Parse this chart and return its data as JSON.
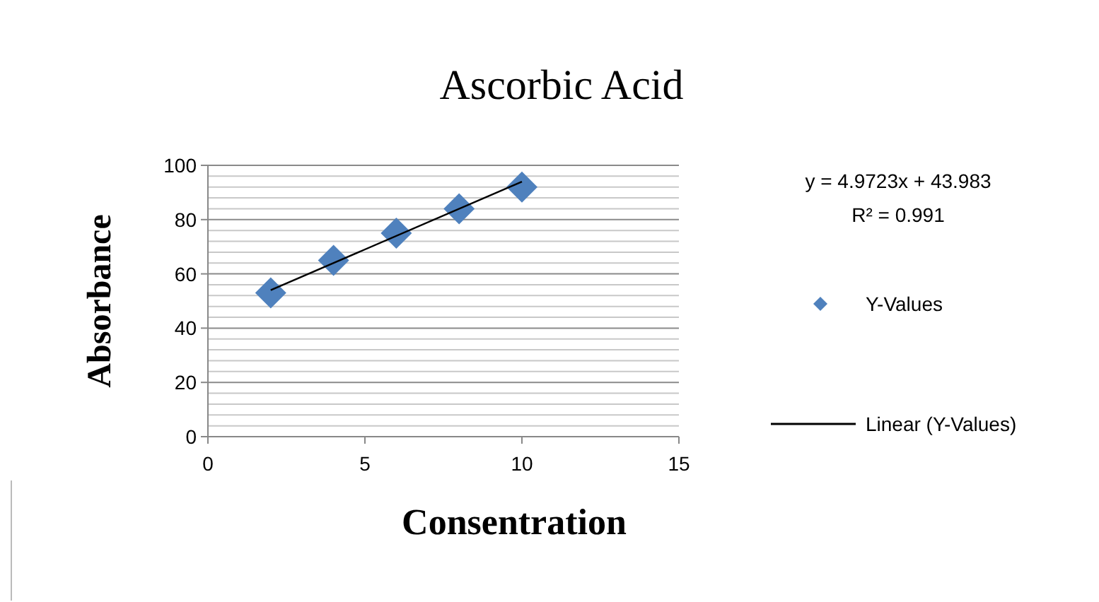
{
  "chart_data": {
    "type": "scatter",
    "title": "Ascorbic Acid",
    "xlabel": "Consentration",
    "ylabel": "Absorbance",
    "xlim": [
      0,
      15
    ],
    "xticks": [
      0,
      5,
      10,
      15
    ],
    "ylim": [
      0,
      100
    ],
    "yticks": [
      0,
      {
        "value": 4,
        "label": null
      },
      {
        "value": 8,
        "label": null
      },
      {
        "value": 12,
        "label": null
      },
      {
        "value": 16,
        "label": null
      },
      20,
      {
        "value": 24,
        "label": null
      },
      {
        "value": 28,
        "label": null
      },
      {
        "value": 32,
        "label": null
      },
      {
        "value": 36,
        "label": null
      },
      40,
      {
        "value": 44,
        "label": null
      },
      {
        "value": 48,
        "label": null
      },
      {
        "value": 52,
        "label": null
      },
      {
        "value": 56,
        "label": null
      },
      60,
      {
        "value": 64,
        "label": null
      },
      {
        "value": 68,
        "label": null
      },
      {
        "value": 72,
        "label": null
      },
      {
        "value": 76,
        "label": null
      },
      80,
      {
        "value": 84,
        "label": null
      },
      {
        "value": 88,
        "label": null
      },
      {
        "value": 92,
        "label": null
      },
      {
        "value": 96,
        "label": null
      },
      100
    ],
    "grid": "y",
    "legend": "right",
    "series": [
      {
        "name": "Y-Values",
        "marker": "diamond",
        "color": "#4f81bd",
        "x": [
          2,
          4,
          6,
          8,
          10
        ],
        "values": [
          53,
          65,
          75,
          84,
          92
        ]
      },
      {
        "name": "Linear (Y-Values)",
        "type": "line",
        "color": "#000000",
        "marker": "none",
        "x": [
          2,
          10
        ],
        "values": [
          54,
          94
        ]
      }
    ],
    "annotations": [
      "y = 4.9723x + 43.983",
      "R² = 0.991"
    ]
  }
}
